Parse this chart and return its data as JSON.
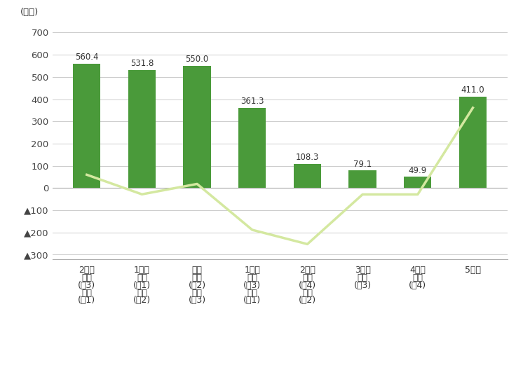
{
  "categories_line1": [
    "2年前",
    "1年前",
    "現在",
    "1年後",
    "2年後",
    "3年後",
    "4年後",
    "5年後"
  ],
  "categories_line2": [
    "長女",
    "長女",
    "長女",
    "長女",
    "長女",
    "長男",
    "長男",
    ""
  ],
  "categories_line3": [
    "(高3)",
    "(大1)",
    "(大2)",
    "(大3)",
    "(大4)",
    "(大3)",
    "(大4)",
    ""
  ],
  "categories_line4": [
    "長男",
    "長男",
    "長男",
    "長男",
    "長男",
    "",
    "",
    ""
  ],
  "categories_line5": [
    "(高1)",
    "(高2)",
    "(高3)",
    "(大1)",
    "(大2)",
    "",
    "",
    ""
  ],
  "bar_values": [
    560.4,
    531.8,
    550.0,
    361.3,
    108.3,
    79.1,
    49.9,
    411.0
  ],
  "line_values": [
    59.6,
    -28.6,
    18.2,
    -188.7,
    -253.0,
    -29.2,
    -29.2,
    361.1
  ],
  "bar_color": "#4a9a3a",
  "line_color": "#d4e8a0",
  "bar_labels": [
    "560.4",
    "531.8",
    "550.0",
    "361.3",
    "108.3",
    "79.1",
    "49.9",
    "411.0"
  ],
  "ylabel": "(万円)",
  "yticks": [
    700,
    600,
    500,
    400,
    300,
    200,
    100,
    0,
    -100,
    -200,
    -300
  ],
  "ytick_labels": [
    "700",
    "600",
    "500",
    "400",
    "300",
    "200",
    "100",
    "0",
    "▲100",
    "▲200",
    "▲300"
  ],
  "ylim": [
    -320,
    730
  ],
  "bg_color": "#ffffff",
  "grid_color": "#cccccc"
}
